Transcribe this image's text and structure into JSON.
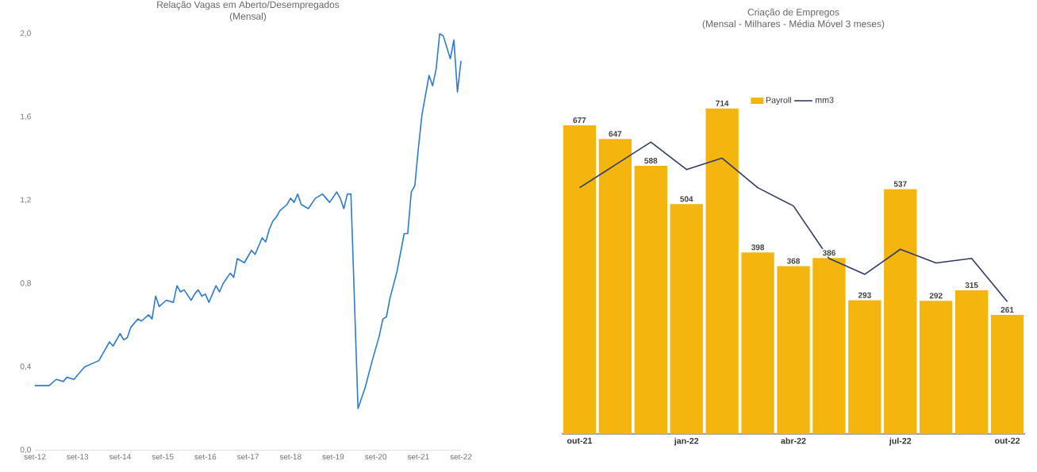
{
  "chart_data": [
    {
      "type": "line",
      "title": "Relação Vagas em Aberto/Desempregados",
      "subtitle": "(Mensal)",
      "color": "#2c7bd6",
      "x": [
        "2012-09",
        "2013-01",
        "2013-03",
        "2013-05",
        "2013-06",
        "2013-08",
        "2013-11",
        "2014-03",
        "2014-06",
        "2014-07",
        "2014-09",
        "2014-10",
        "2014-11",
        "2014-12",
        "2015-02",
        "2015-03",
        "2015-05",
        "2015-06",
        "2015-07",
        "2015-08",
        "2015-10",
        "2015-12",
        "2016-01",
        "2016-02",
        "2016-03",
        "2016-05",
        "2016-06",
        "2016-07",
        "2016-08",
        "2016-09",
        "2016-10",
        "2016-12",
        "2017-01",
        "2017-02",
        "2017-04",
        "2017-05",
        "2017-06",
        "2017-08",
        "2017-10",
        "2017-11",
        "2018-01",
        "2018-02",
        "2018-03",
        "2018-04",
        "2018-05",
        "2018-06",
        "2018-08",
        "2018-09",
        "2018-10",
        "2018-11",
        "2018-12",
        "2019-02",
        "2019-04",
        "2019-06",
        "2019-08",
        "2019-10",
        "2019-11",
        "2019-12",
        "2020-01",
        "2020-02",
        "2020-04",
        "2020-06",
        "2020-08",
        "2020-10",
        "2020-11",
        "2020-12",
        "2021-01",
        "2021-03",
        "2021-05",
        "2021-06",
        "2021-07",
        "2021-08",
        "2021-09",
        "2021-10",
        "2021-12",
        "2022-01",
        "2022-02",
        "2022-03",
        "2022-04",
        "2022-06",
        "2022-07",
        "2022-08",
        "2022-09"
      ],
      "values": [
        0.31,
        0.31,
        0.34,
        0.33,
        0.35,
        0.34,
        0.4,
        0.43,
        0.52,
        0.5,
        0.56,
        0.53,
        0.54,
        0.59,
        0.63,
        0.62,
        0.65,
        0.63,
        0.74,
        0.69,
        0.72,
        0.71,
        0.79,
        0.76,
        0.77,
        0.72,
        0.75,
        0.77,
        0.74,
        0.75,
        0.71,
        0.79,
        0.76,
        0.8,
        0.85,
        0.83,
        0.92,
        0.9,
        0.96,
        0.94,
        1.02,
        1.0,
        1.06,
        1.1,
        1.12,
        1.15,
        1.18,
        1.21,
        1.19,
        1.23,
        1.18,
        1.16,
        1.21,
        1.23,
        1.19,
        1.24,
        1.21,
        1.16,
        1.23,
        1.23,
        0.2,
        0.3,
        0.43,
        0.55,
        0.63,
        0.64,
        0.73,
        0.86,
        1.04,
        1.04,
        1.24,
        1.27,
        1.45,
        1.61,
        1.8,
        1.75,
        1.83,
        2.0,
        1.99,
        1.88,
        1.97,
        1.72,
        1.87
      ],
      "xlim": [
        "2012-09",
        "2022-09"
      ],
      "xticks": [
        {
          "value": "2012-09",
          "label": "set-12"
        },
        {
          "value": "2013-09",
          "label": "set-13"
        },
        {
          "value": "2014-09",
          "label": "set-14"
        },
        {
          "value": "2015-09",
          "label": "set-15"
        },
        {
          "value": "2016-09",
          "label": "set-16"
        },
        {
          "value": "2017-09",
          "label": "set-17"
        },
        {
          "value": "2018-09",
          "label": "set-18"
        },
        {
          "value": "2019-09",
          "label": "set-19"
        },
        {
          "value": "2020-09",
          "label": "set-20"
        },
        {
          "value": "2021-09",
          "label": "set-21"
        },
        {
          "value": "2022-09",
          "label": "set-22"
        }
      ],
      "ylim": [
        0,
        2
      ],
      "yticks": [
        {
          "value": 0,
          "label": "0,0"
        },
        {
          "value": 0.4,
          "label": "0,4"
        },
        {
          "value": 0.8,
          "label": "0,8"
        },
        {
          "value": 1.2,
          "label": "1,2"
        },
        {
          "value": 1.6,
          "label": "1,6"
        },
        {
          "value": 2.0,
          "label": "2,0"
        }
      ]
    },
    {
      "type": "bar",
      "title": "Criação de Empregos",
      "subtitle": "(Mensal - Milhares - Média Móvel 3 meses)",
      "categories": [
        "out-21",
        null,
        null,
        "jan-22",
        null,
        null,
        "abr-22",
        null,
        null,
        "jul-22",
        null,
        null,
        "out-22"
      ],
      "series": [
        {
          "name": "Payroll",
          "color": "#f5b50f",
          "values": [
            677,
            647,
            588,
            504,
            714,
            398,
            368,
            386,
            293,
            537,
            292,
            315,
            261
          ],
          "value_labels": [
            "677",
            "647",
            "588",
            "504",
            "714",
            "398",
            "368",
            "386",
            "293",
            "537",
            "292",
            "315",
            "261"
          ]
        },
        {
          "name": "mm3",
          "type": "line",
          "color": "#2f3b68",
          "values": [
            540,
            590,
            640,
            580,
            605,
            540,
            500,
            385,
            350,
            405,
            375,
            385,
            290
          ]
        }
      ],
      "legend": "top"
    }
  ]
}
